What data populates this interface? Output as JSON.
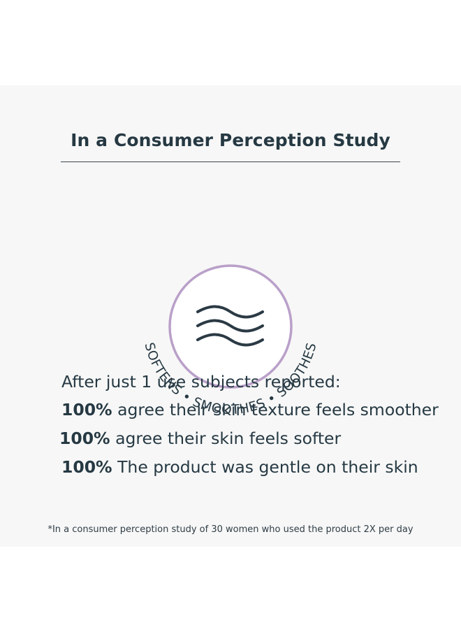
{
  "title": "In a Consumer Perception Study",
  "icon": {
    "name": "waves-icon",
    "ring_color": "#b9a0c9",
    "wave_color": "#2b3a44"
  },
  "arc_text": {
    "left": "SOFTENS",
    "sep1": "•",
    "middle": "SMOOTHES",
    "sep2": "•",
    "right": "SOOTHES"
  },
  "intro": "After just 1 use subjects reported:",
  "stats": [
    {
      "value": "100%",
      "text": " agree their skin texture feels smoother"
    },
    {
      "value": "100%",
      "text": " agree their skin feels softer"
    },
    {
      "value": "100%",
      "text": " The product was gentle on their skin"
    }
  ],
  "footnote": "*In a consumer perception study of 30 women who used the product 2X per day"
}
